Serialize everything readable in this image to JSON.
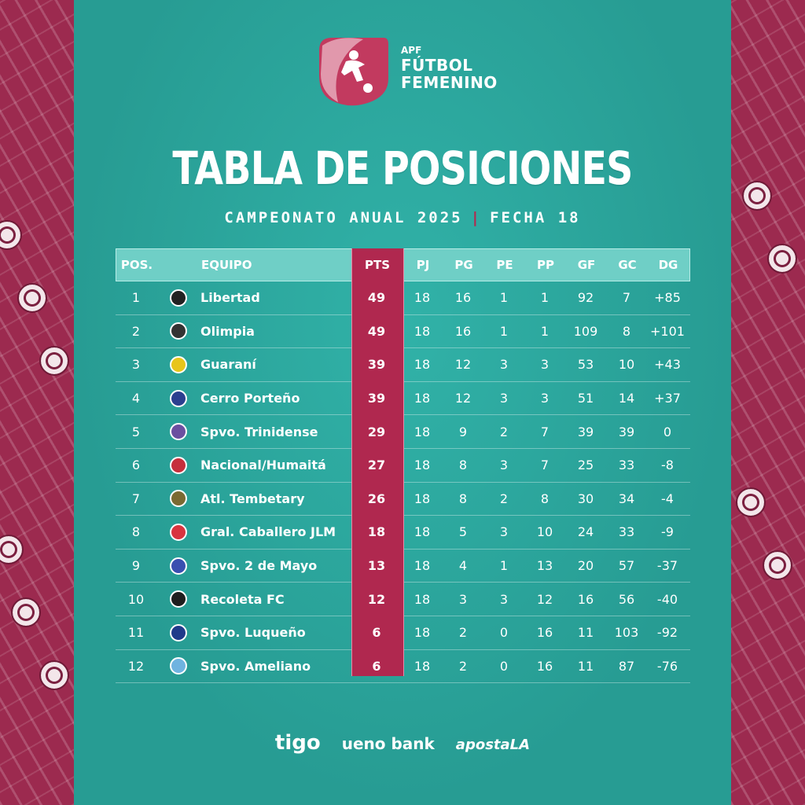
{
  "brand": {
    "small": "APF",
    "line1": "FÚTBOL",
    "line2": "FEMENINO"
  },
  "title": "TABLA DE POSICIONES",
  "subtitle_left": "CAMPEONATO ANUAL 2025",
  "subtitle_sep": "|",
  "subtitle_right": "FECHA 18",
  "columns": {
    "pos": "POS.",
    "team": "EQUIPO",
    "pts": "PTS",
    "pj": "PJ",
    "pg": "PG",
    "pe": "PE",
    "pp": "PP",
    "gf": "GF",
    "gc": "GC",
    "dg": "DG"
  },
  "rows": [
    {
      "pos": "1",
      "team": "Libertad",
      "pts": "49",
      "pj": "18",
      "pg": "16",
      "pe": "1",
      "pp": "1",
      "gf": "92",
      "gc": "7",
      "dg": "+85",
      "color": "#222222"
    },
    {
      "pos": "2",
      "team": "Olimpia",
      "pts": "49",
      "pj": "18",
      "pg": "16",
      "pe": "1",
      "pp": "1",
      "gf": "109",
      "gc": "8",
      "dg": "+101",
      "color": "#333333"
    },
    {
      "pos": "3",
      "team": "Guaraní",
      "pts": "39",
      "pj": "18",
      "pg": "12",
      "pe": "3",
      "pp": "3",
      "gf": "53",
      "gc": "10",
      "dg": "+43",
      "color": "#e8c51a"
    },
    {
      "pos": "4",
      "team": "Cerro Porteño",
      "pts": "39",
      "pj": "18",
      "pg": "12",
      "pe": "3",
      "pp": "3",
      "gf": "51",
      "gc": "14",
      "dg": "+37",
      "color": "#2b3f8f"
    },
    {
      "pos": "5",
      "team": "Spvo. Trinidense",
      "pts": "29",
      "pj": "18",
      "pg": "9",
      "pe": "2",
      "pp": "7",
      "gf": "39",
      "gc": "39",
      "dg": "0",
      "color": "#6b4fa0"
    },
    {
      "pos": "6",
      "team": "Nacional/Humaitá",
      "pts": "27",
      "pj": "18",
      "pg": "8",
      "pe": "3",
      "pp": "7",
      "gf": "25",
      "gc": "33",
      "dg": "-8",
      "color": "#c62f3c"
    },
    {
      "pos": "7",
      "team": "Atl. Tembetary",
      "pts": "26",
      "pj": "18",
      "pg": "8",
      "pe": "2",
      "pp": "8",
      "gf": "30",
      "gc": "34",
      "dg": "-4",
      "color": "#7a6a32"
    },
    {
      "pos": "8",
      "team": "Gral. Caballero JLM",
      "pts": "18",
      "pj": "18",
      "pg": "5",
      "pe": "3",
      "pp": "10",
      "gf": "24",
      "gc": "33",
      "dg": "-9",
      "color": "#d8343f"
    },
    {
      "pos": "9",
      "team": "Spvo. 2 de Mayo",
      "pts": "13",
      "pj": "18",
      "pg": "4",
      "pe": "1",
      "pp": "13",
      "gf": "20",
      "gc": "57",
      "dg": "-37",
      "color": "#3a4fb0"
    },
    {
      "pos": "10",
      "team": "Recoleta FC",
      "pts": "12",
      "pj": "18",
      "pg": "3",
      "pe": "3",
      "pp": "12",
      "gf": "16",
      "gc": "56",
      "dg": "-40",
      "color": "#1e1e1e"
    },
    {
      "pos": "11",
      "team": "Spvo. Luqueño",
      "pts": "6",
      "pj": "18",
      "pg": "2",
      "pe": "0",
      "pp": "16",
      "gf": "11",
      "gc": "103",
      "dg": "-92",
      "color": "#1f3a8a"
    },
    {
      "pos": "12",
      "team": "Spvo. Ameliano",
      "pts": "6",
      "pj": "18",
      "pg": "2",
      "pe": "0",
      "pp": "16",
      "gf": "11",
      "gc": "87",
      "dg": "-76",
      "color": "#6fb3e0"
    }
  ],
  "sponsors": {
    "s1": "tigo",
    "s2": "ueno bank",
    "s3": "apostaLA"
  },
  "colors": {
    "panel": "#2ba59c",
    "pts_column": "#b0284f",
    "side_pattern": "#9c2a4f"
  }
}
